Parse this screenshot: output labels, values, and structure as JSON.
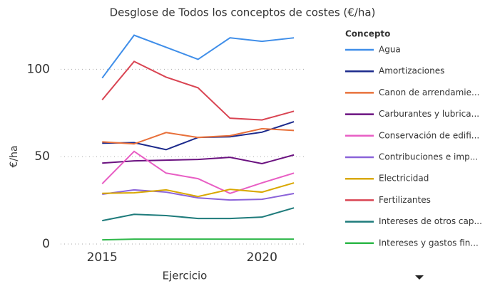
{
  "chart_data": {
    "type": "line",
    "title": "Desglose de Todos los conceptos de costes (€/ha)",
    "x_label": "Ejercicio",
    "y_label": "€/ha",
    "legend_title": "Concepto",
    "x": [
      2015,
      2016,
      2017,
      2018,
      2019,
      2020,
      2021
    ],
    "xlim": [
      2013.7,
      2021.4
    ],
    "xticks": [
      2015,
      2020
    ],
    "ylim": [
      0,
      125
    ],
    "yticks": [
      0,
      50,
      100
    ],
    "grid": true,
    "series": [
      {
        "name": "Agua",
        "color": "#3f8ee9",
        "values": [
          95,
          119.5,
          112.6,
          105.7,
          118,
          116,
          118
        ]
      },
      {
        "name": "Amortizaciones",
        "color": "#1c2a8c",
        "values": [
          57.7,
          58,
          54,
          61,
          61.4,
          64,
          70
        ]
      },
      {
        "name": "Canon de arrendamie...",
        "color": "#e8703a",
        "values": [
          58.5,
          57.3,
          63.8,
          61,
          62,
          66,
          65
        ]
      },
      {
        "name": "Carburantes y lubrica...",
        "color": "#6b1280",
        "values": [
          46.3,
          47.6,
          48,
          48.4,
          49.6,
          46,
          51
        ]
      },
      {
        "name": "Conservación de edifi...",
        "color": "#e85ec4",
        "values": [
          34.5,
          53,
          40.6,
          37.4,
          29,
          35,
          40.6
        ]
      },
      {
        "name": "Contribuciones e imp...",
        "color": "#8b63d9",
        "values": [
          28.5,
          31,
          29.7,
          26.4,
          25.2,
          25.6,
          28.9
        ]
      },
      {
        "name": "Electricidad",
        "color": "#d9a800",
        "values": [
          29,
          29.3,
          31,
          27.2,
          31.3,
          29.7,
          35
        ]
      },
      {
        "name": "Fertilizantes",
        "color": "#d94452",
        "values": [
          82.5,
          104.5,
          95.5,
          89.4,
          72,
          71,
          76
        ]
      },
      {
        "name": "Intereses de otros cap...",
        "color": "#1e7b7b",
        "values": [
          13.4,
          17,
          16.3,
          14.6,
          14.6,
          15.4,
          20.7
        ]
      },
      {
        "name": "Intereses y gastos fin...",
        "color": "#2fb84a",
        "values": [
          2.4,
          2.8,
          2.8,
          2.8,
          2.8,
          2.8,
          2.8
        ]
      }
    ]
  }
}
